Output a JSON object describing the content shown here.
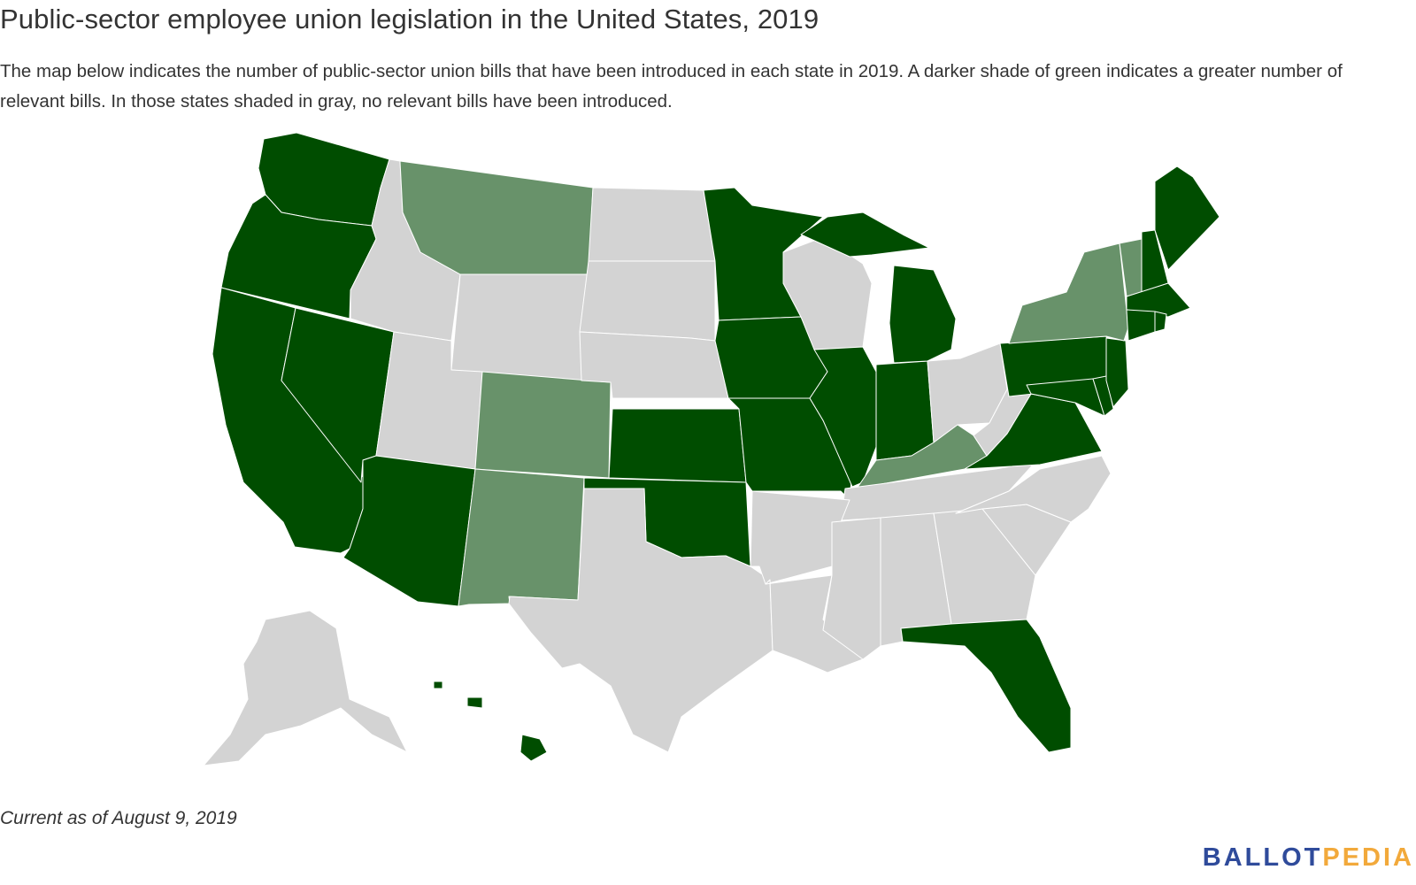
{
  "header": {
    "title": "Public-sector employee union legislation in the United States, 2019",
    "subtitle": "The map below indicates the number of public-sector union bills that have been introduced in each state in 2019. A darker shade of green indicates a greater number of relevant bills. In those states shaded in gray, no relevant bills have been introduced."
  },
  "colors": {
    "dark": "#004d00",
    "light": "#68926a",
    "none": "#d3d3d3"
  },
  "map": {
    "states_dark": [
      "WA",
      "OR",
      "CA",
      "NV",
      "AZ",
      "KS",
      "OK",
      "MN",
      "IA",
      "MO",
      "IL",
      "IN",
      "MI",
      "PA",
      "NJ",
      "MD",
      "DE",
      "VA",
      "FL",
      "ME",
      "NH",
      "MA",
      "CT",
      "RI",
      "HI"
    ],
    "states_light": [
      "MT",
      "CO",
      "NM",
      "NY",
      "VT",
      "KY"
    ],
    "states_gray": [
      "ID",
      "WY",
      "UT",
      "ND",
      "SD",
      "NE",
      "TX",
      "AR",
      "LA",
      "MS",
      "AL",
      "GA",
      "SC",
      "NC",
      "TN",
      "OH",
      "WV",
      "WI",
      "AK"
    ]
  },
  "footer": {
    "note": "Current as of August 9, 2019",
    "logo_part1": "BALLOT",
    "logo_part2": "PEDIA"
  }
}
